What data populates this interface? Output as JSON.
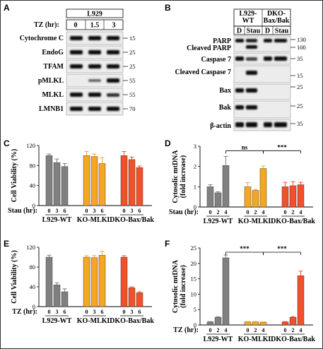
{
  "panels": {
    "A": {
      "letter": "A",
      "cell_line": "L929",
      "tz_label": "TZ (hr):",
      "tz_values": [
        "0",
        "1.5",
        "3"
      ],
      "rows": [
        {
          "label": "Cytochrome C",
          "mw": "15"
        },
        {
          "label": "EndoG",
          "mw": "25"
        },
        {
          "label": "TFAM",
          "mw": "25"
        },
        {
          "label": "pMLKL",
          "mw": "55"
        },
        {
          "label": "MLKL",
          "mw": "55"
        },
        {
          "label": "LMNB1",
          "mw": "70"
        }
      ]
    },
    "B": {
      "letter": "B",
      "groups": [
        {
          "line1": "L929-",
          "line2": "WT"
        },
        {
          "line1": "DKO-",
          "line2": "Bax/Bak"
        }
      ],
      "treatments": [
        "D",
        "Stau",
        "D",
        "Stau"
      ],
      "rows": [
        {
          "label": "PARP",
          "mw": "130"
        },
        {
          "label": "Cleaved PARP",
          "mw": "100"
        },
        {
          "label": "Caspase 7",
          "mw": "35"
        },
        {
          "label": "Cleaved Caspase 7",
          "mw": "15"
        },
        {
          "label": "Bax",
          "mw": "25"
        },
        {
          "label": "Bak",
          "mw": "25"
        },
        {
          "label": "β-actin",
          "mw": "35"
        }
      ]
    }
  },
  "chart_data": [
    {
      "panel": "C",
      "type": "bar",
      "ylabel": "Cell Viability (%)",
      "ylim": [
        0,
        120
      ],
      "yticks": [
        0,
        40,
        80,
        120
      ],
      "xlabel": "Stau (hr):",
      "timepoints": [
        "0",
        "3",
        "6"
      ],
      "groups": [
        {
          "name": "L929-WT",
          "color": "#808080",
          "values": [
            100,
            86,
            78
          ],
          "errors": [
            3,
            7,
            6
          ]
        },
        {
          "name": "KO-MLKL",
          "color": "#f5a623",
          "values": [
            100,
            98,
            84
          ],
          "errors": [
            8,
            5,
            12
          ]
        },
        {
          "name": "DKO-Bax/Bak",
          "color": "#f0502a",
          "values": [
            100,
            92,
            76
          ],
          "errors": [
            8,
            5,
            3
          ]
        }
      ],
      "annotations": []
    },
    {
      "panel": "D",
      "type": "bar",
      "ylabel": "Cytosolic mtDNA (fold increase)",
      "ylim": [
        0,
        3
      ],
      "yticks": [
        0,
        1,
        2,
        3
      ],
      "xlabel": "Stau (hr):",
      "timepoints": [
        "0",
        "2",
        "4"
      ],
      "groups": [
        {
          "name": "L929-WT",
          "color": "#808080",
          "values": [
            1.0,
            0.7,
            2.05
          ],
          "errors": [
            0.1,
            0.05,
            0.45
          ]
        },
        {
          "name": "KO-MLKL",
          "color": "#f5a623",
          "values": [
            1.0,
            0.82,
            1.9
          ],
          "errors": [
            0.2,
            0.05,
            0.12
          ]
        },
        {
          "name": "DKO-Bax/Bak",
          "color": "#f0502a",
          "values": [
            1.0,
            1.05,
            1.1
          ],
          "errors": [
            0.22,
            0.2,
            0.12
          ]
        }
      ],
      "annotations": [
        {
          "text": "ns",
          "from": [
            0,
            2
          ],
          "to": [
            1,
            2
          ]
        },
        {
          "text": "***",
          "from": [
            1,
            2
          ],
          "to": [
            2,
            2
          ]
        }
      ]
    },
    {
      "panel": "E",
      "type": "bar",
      "ylabel": "Cell Viability (%)",
      "ylim": [
        0,
        120
      ],
      "yticks": [
        0,
        40,
        80,
        120
      ],
      "xlabel": "TZ (hr):",
      "timepoints": [
        "0",
        "3",
        "6"
      ],
      "groups": [
        {
          "name": "L929-WT",
          "color": "#808080",
          "values": [
            100,
            44,
            30
          ],
          "errors": [
            4,
            4,
            6
          ]
        },
        {
          "name": "KO-MLKL",
          "color": "#f5a623",
          "values": [
            100,
            99,
            104
          ],
          "errors": [
            3,
            4,
            8
          ]
        },
        {
          "name": "DKO-Bax/Bak",
          "color": "#f0502a",
          "values": [
            100,
            38,
            28
          ],
          "errors": [
            3,
            2,
            2
          ]
        }
      ],
      "annotations": []
    },
    {
      "panel": "F",
      "type": "bar",
      "ylabel": "Cytosolic mtDNA (fold increase)",
      "ylim": [
        0,
        25
      ],
      "yticks": [
        0,
        5,
        10,
        15,
        20,
        25
      ],
      "xlabel": "TZ (hr):",
      "timepoints": [
        "0",
        "2",
        "4"
      ],
      "groups": [
        {
          "name": "L929-WT",
          "color": "#808080",
          "values": [
            1.0,
            2.5,
            21.8
          ],
          "errors": [
            0.1,
            0.2,
            0.9
          ]
        },
        {
          "name": "KO-MLKL",
          "color": "#f5a623",
          "values": [
            1.0,
            1.0,
            0.9
          ],
          "errors": [
            0.1,
            0.1,
            0.1
          ]
        },
        {
          "name": "DKO-Bax/Bak",
          "color": "#f0502a",
          "values": [
            1.0,
            2.5,
            16.0
          ],
          "errors": [
            0.1,
            0.2,
            1.5
          ]
        }
      ],
      "annotations": [
        {
          "text": "***",
          "from": [
            0,
            2
          ],
          "to": [
            1,
            2
          ]
        },
        {
          "text": "***",
          "from": [
            1,
            2
          ],
          "to": [
            2,
            2
          ]
        }
      ]
    }
  ]
}
